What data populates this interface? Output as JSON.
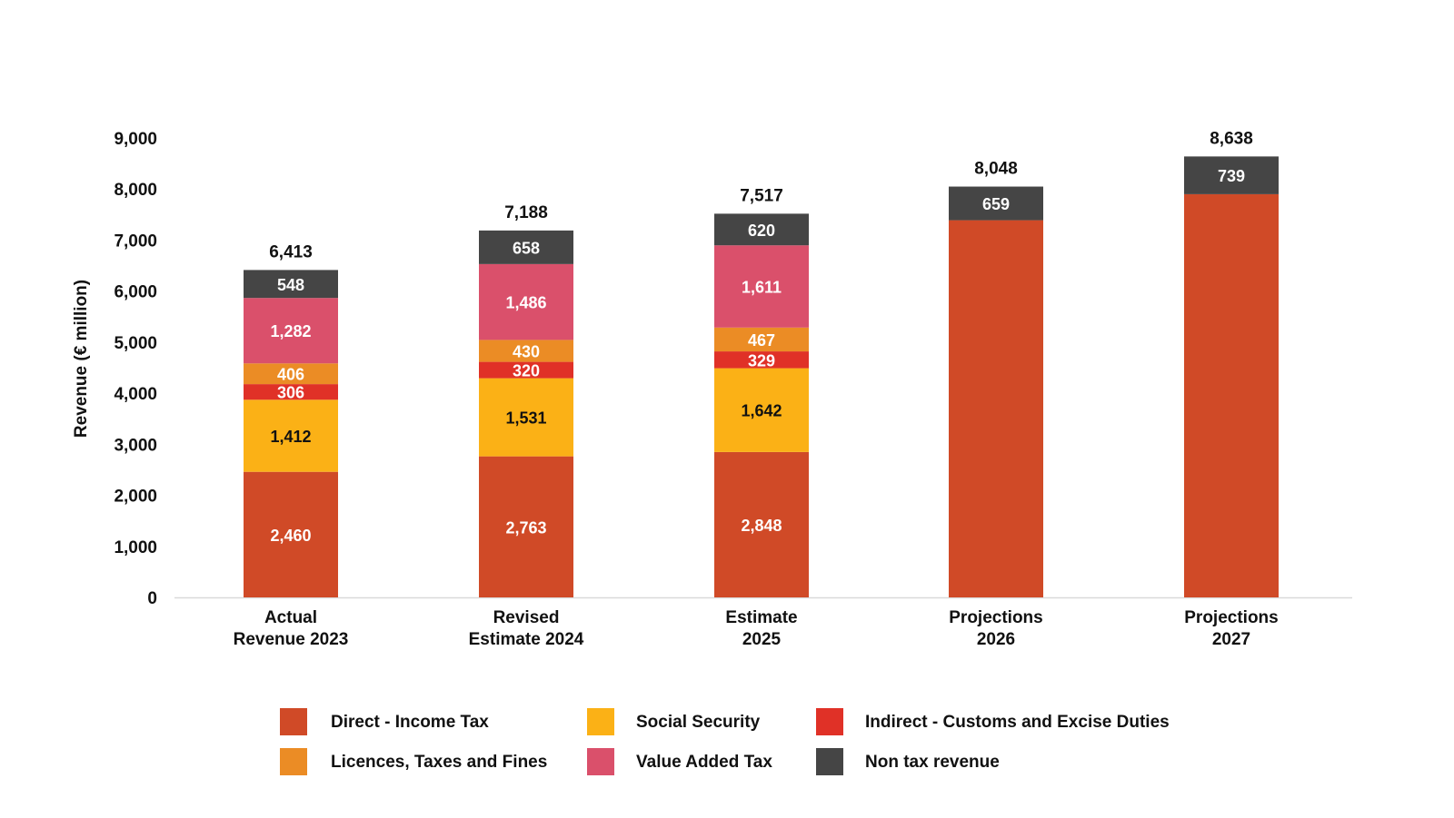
{
  "chart_data": {
    "type": "bar",
    "stacked": true,
    "title": "",
    "xlabel": "",
    "ylabel": "Revenue (€ million)",
    "ylim": [
      0,
      9000
    ],
    "yticks": [
      0,
      1000,
      2000,
      3000,
      4000,
      5000,
      6000,
      7000,
      8000,
      9000
    ],
    "ytick_labels": [
      "0",
      "1,000",
      "2,000",
      "3,000",
      "4,000",
      "5,000",
      "6,000",
      "7,000",
      "8,000",
      "9,000"
    ],
    "grid": false,
    "legend_position": "bottom",
    "categories": [
      [
        "Actual",
        "Revenue 2023"
      ],
      [
        "Revised",
        "Estimate 2024"
      ],
      [
        "Estimate",
        "2025"
      ],
      [
        "Projections",
        "2026"
      ],
      [
        "Projections",
        "2027"
      ]
    ],
    "series": [
      {
        "name": "Direct - Income Tax",
        "color": "#D04A27",
        "label_color": "#ffffff",
        "values": [
          2460,
          2763,
          2848,
          7389,
          7899
        ],
        "labels": [
          "2,460",
          "2,763",
          "2,848",
          "",
          ""
        ]
      },
      {
        "name": "Social Security",
        "color": "#FBB116",
        "label_color": "#111111",
        "values": [
          1412,
          1531,
          1642,
          0,
          0
        ],
        "labels": [
          "1,412",
          "1,531",
          "1,642",
          "",
          ""
        ]
      },
      {
        "name": "Indirect - Customs and Excise Duties",
        "color": "#E03127",
        "label_color": "#ffffff",
        "values": [
          306,
          320,
          329,
          0,
          0
        ],
        "labels": [
          "306",
          "320",
          "329",
          "",
          ""
        ]
      },
      {
        "name": "Licences, Taxes and Fines",
        "color": "#EB8C25",
        "label_color": "#ffffff",
        "values": [
          406,
          430,
          467,
          0,
          0
        ],
        "labels": [
          "406",
          "430",
          "467",
          "",
          ""
        ]
      },
      {
        "name": "Value Added Tax",
        "color": "#DA506B",
        "label_color": "#ffffff",
        "values": [
          1282,
          1486,
          1611,
          0,
          0
        ],
        "labels": [
          "1,282",
          "1,486",
          "1,611",
          "",
          ""
        ]
      },
      {
        "name": "Non tax revenue",
        "color": "#454545",
        "label_color": "#ffffff",
        "values": [
          548,
          658,
          620,
          659,
          739
        ],
        "labels": [
          "548",
          "658",
          "620",
          "659",
          "739"
        ]
      }
    ],
    "totals": [
      6413,
      7188,
      7517,
      8048,
      8638
    ],
    "total_labels": [
      "6,413",
      "7,188",
      "7,517",
      "8,048",
      "8,638"
    ],
    "legend_order": [
      "Direct - Income Tax",
      "Social Security",
      "Indirect - Customs and Excise Duties",
      "Licences, Taxes and Fines",
      "Value Added Tax",
      "Non tax revenue"
    ]
  }
}
